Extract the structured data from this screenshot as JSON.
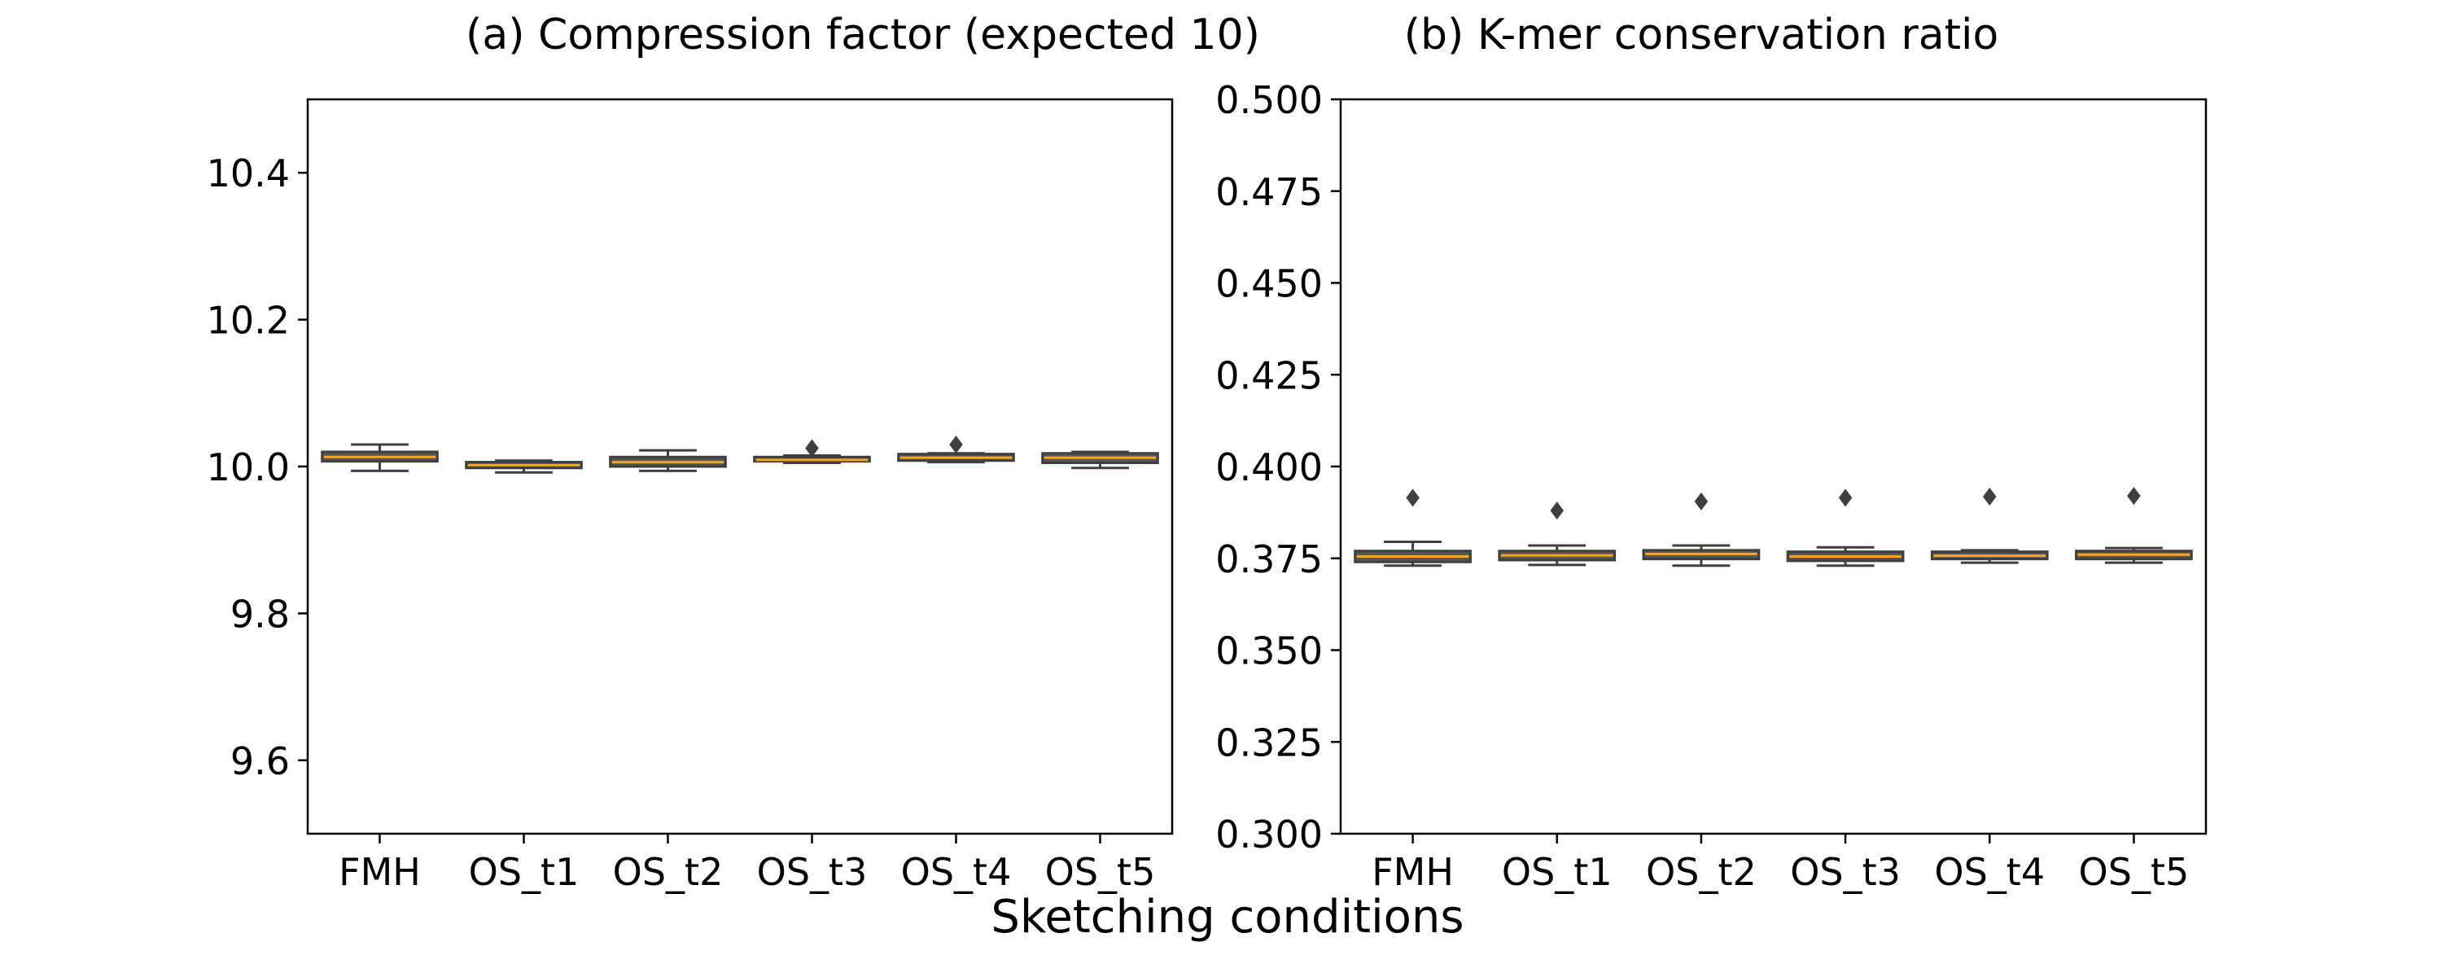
{
  "figure": {
    "shared_xlabel": "Sketching conditions"
  },
  "colors": {
    "box_fill": "#555555",
    "box_edge": "#3f3f3f",
    "median": "#f5a623",
    "whisker": "#3f3f3f",
    "outlier": "#3f3f3f",
    "axes": "#000000"
  },
  "chart_data": [
    {
      "type": "box",
      "title": "(a) Compression factor (expected 10)",
      "xlabel": "",
      "ylabel": "",
      "categories": [
        "FMH",
        "OS_t1",
        "OS_t2",
        "OS_t3",
        "OS_t4",
        "OS_t5"
      ],
      "ylim": [
        9.5,
        10.5
      ],
      "yticks": [
        9.6,
        9.8,
        10.0,
        10.2,
        10.4
      ],
      "ytick_labels": [
        "9.6",
        "9.8",
        "10.0",
        "10.2",
        "10.4"
      ],
      "grid": false,
      "boxes": [
        {
          "category": "FMH",
          "whisker_low": 9.994,
          "q1": 10.007,
          "median": 10.013,
          "q3": 10.02,
          "whisker_high": 10.03,
          "outliers": []
        },
        {
          "category": "OS_t1",
          "whisker_low": 9.992,
          "q1": 9.998,
          "median": 10.002,
          "q3": 10.006,
          "whisker_high": 10.008,
          "outliers": []
        },
        {
          "category": "OS_t2",
          "whisker_low": 9.994,
          "q1": 10.0,
          "median": 10.006,
          "q3": 10.013,
          "whisker_high": 10.022,
          "outliers": []
        },
        {
          "category": "OS_t3",
          "whisker_low": 10.005,
          "q1": 10.007,
          "median": 10.009,
          "q3": 10.013,
          "whisker_high": 10.015,
          "outliers": [
            10.025
          ]
        },
        {
          "category": "OS_t4",
          "whisker_low": 10.006,
          "q1": 10.008,
          "median": 10.012,
          "q3": 10.017,
          "whisker_high": 10.018,
          "outliers": [
            10.03
          ]
        },
        {
          "category": "OS_t5",
          "whisker_low": 9.998,
          "q1": 10.005,
          "median": 10.012,
          "q3": 10.018,
          "whisker_high": 10.02,
          "outliers": []
        }
      ]
    },
    {
      "type": "box",
      "title": "(b) K-mer conservation ratio",
      "xlabel": "",
      "ylabel": "",
      "categories": [
        "FMH",
        "OS_t1",
        "OS_t2",
        "OS_t3",
        "OS_t4",
        "OS_t5"
      ],
      "ylim": [
        0.3,
        0.5
      ],
      "yticks": [
        0.3,
        0.325,
        0.35,
        0.375,
        0.4,
        0.425,
        0.45,
        0.475,
        0.5
      ],
      "ytick_labels": [
        "0.300",
        "0.325",
        "0.350",
        "0.375",
        "0.400",
        "0.425",
        "0.450",
        "0.475",
        "0.500"
      ],
      "grid": false,
      "boxes": [
        {
          "category": "FMH",
          "whisker_low": 0.373,
          "q1": 0.374,
          "median": 0.3755,
          "q3": 0.377,
          "whisker_high": 0.3795,
          "outliers": [
            0.3915
          ]
        },
        {
          "category": "OS_t1",
          "whisker_low": 0.3732,
          "q1": 0.3745,
          "median": 0.3758,
          "q3": 0.377,
          "whisker_high": 0.3785,
          "outliers": [
            0.388
          ]
        },
        {
          "category": "OS_t2",
          "whisker_low": 0.373,
          "q1": 0.3748,
          "median": 0.3762,
          "q3": 0.3772,
          "whisker_high": 0.3785,
          "outliers": [
            0.3905
          ]
        },
        {
          "category": "OS_t3",
          "whisker_low": 0.373,
          "q1": 0.3743,
          "median": 0.3755,
          "q3": 0.3768,
          "whisker_high": 0.378,
          "outliers": [
            0.3915
          ]
        },
        {
          "category": "OS_t4",
          "whisker_low": 0.3738,
          "q1": 0.3748,
          "median": 0.3757,
          "q3": 0.3768,
          "whisker_high": 0.3772,
          "outliers": [
            0.3918
          ]
        },
        {
          "category": "OS_t5",
          "whisker_low": 0.3738,
          "q1": 0.3748,
          "median": 0.376,
          "q3": 0.377,
          "whisker_high": 0.3778,
          "outliers": [
            0.392
          ]
        }
      ]
    }
  ]
}
